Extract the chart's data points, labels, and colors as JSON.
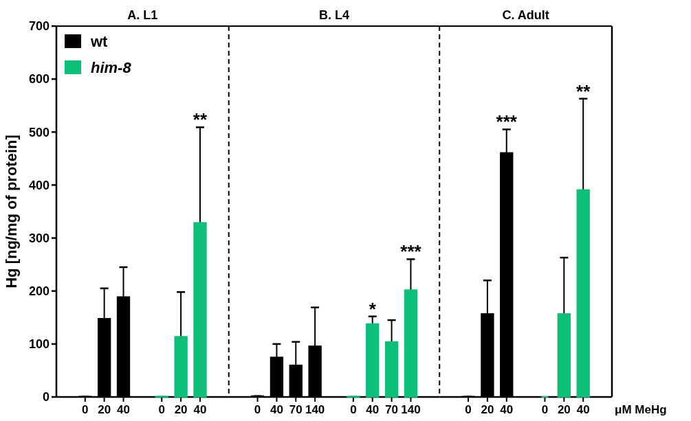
{
  "chart_data": [
    {
      "type": "bar",
      "title": "A. L1",
      "ylabel": "Hg [ng/mg of protein]",
      "annotations": [
        "**"
      ],
      "categories": [
        "0",
        "20",
        "40",
        null,
        "0",
        "20",
        "40"
      ],
      "ylim": [
        0,
        700
      ],
      "yticks": [
        0,
        100,
        200,
        300,
        400,
        500,
        600,
        700
      ],
      "legend": "top left",
      "series": [
        {
          "name": "wt",
          "color": "#000000",
          "values": [
            1,
            148,
            189,
            null,
            null,
            null,
            null
          ],
          "errors": [
            null,
            [
              148,
              205
            ],
            [
              189,
              245
            ],
            null,
            null,
            null,
            null
          ]
        },
        {
          "name": "him-8",
          "color": "#0dbf78",
          "values": [
            null,
            null,
            null,
            null,
            1,
            114,
            329
          ],
          "errors": [
            null,
            null,
            null,
            null,
            null,
            [
              114,
              198
            ],
            [
              329,
              509
            ]
          ]
        }
      ]
    },
    {
      "type": "bar",
      "title": "B. L4",
      "categories": [
        "0",
        "40",
        "70",
        "140",
        null,
        "0",
        "40",
        "70",
        "140"
      ],
      "ylim": [
        0,
        700
      ],
      "yticks": [
        0,
        100,
        200,
        300,
        400,
        500,
        600,
        700
      ],
      "tick_labels": "x",
      "series": [
        {
          "color": "#000000",
          "values": [
            2,
            75,
            60,
            96,
            null,
            null,
            null,
            null,
            null
          ],
          "errors": [
            null,
            [
              75,
              100
            ],
            [
              60,
              104
            ],
            [
              96,
              169
            ],
            null,
            null,
            null,
            null,
            null
          ]
        },
        {
          "color": "#0dbf78",
          "values": [
            null,
            null,
            null,
            null,
            null,
            1,
            138,
            104,
            202
          ],
          "errors": [
            null,
            null,
            null,
            null,
            null,
            null,
            [
              138,
              152
            ],
            [
              104,
              145
            ],
            [
              202,
              260
            ]
          ],
          "value_labels": [
            null,
            null,
            null,
            null,
            null,
            null,
            "*",
            null,
            "***"
          ]
        }
      ]
    },
    {
      "type": "bar",
      "title": "C. Adult",
      "xlabel": "μM MeHg",
      "annotations": [
        "**"
      ],
      "categories": [
        "0",
        "20",
        "40",
        null,
        "0",
        "20",
        "40"
      ],
      "ylim": [
        0,
        700
      ],
      "yticks": [
        0,
        100,
        200,
        300,
        400,
        500,
        600,
        700
      ],
      "tick_labels": "x",
      "series": [
        {
          "color": "#000000",
          "values": [
            1,
            157,
            461,
            null,
            null,
            null,
            null
          ],
          "errors": [
            null,
            [
              157,
              220
            ],
            [
              461,
              505
            ],
            null,
            null,
            null,
            null
          ],
          "value_labels": [
            null,
            null,
            "***",
            null,
            null,
            null,
            null
          ]
        },
        {
          "color": "#0dbf78",
          "values": [
            null,
            null,
            null,
            null,
            0,
            157,
            391
          ],
          "errors": [
            null,
            null,
            null,
            null,
            null,
            [
              157,
              263
            ],
            [
              391,
              563
            ]
          ]
        }
      ]
    }
  ]
}
